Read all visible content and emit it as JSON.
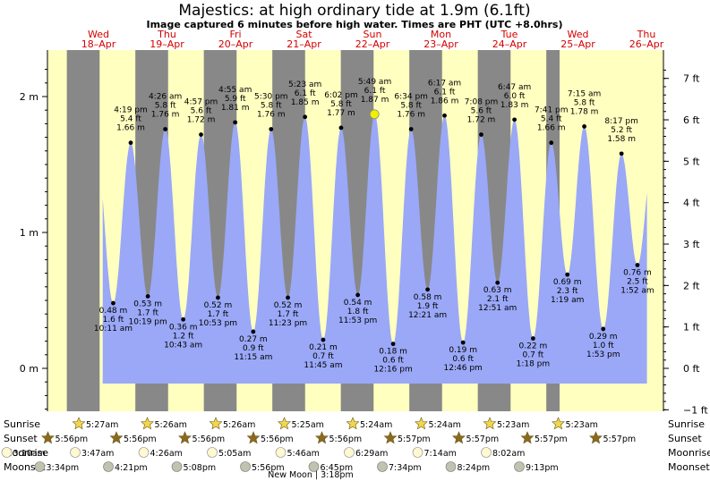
{
  "title": "Majestics: at high  ordinary tide at 1.9m (6.1ft)",
  "subtitle": "Image captured 6 minutes before high water. Times are PHT (UTC +8.0hrs)",
  "chart_data": {
    "type": "area",
    "days": [
      {
        "weekday": "Wed",
        "date": "18–Apr"
      },
      {
        "weekday": "Thu",
        "date": "19–Apr"
      },
      {
        "weekday": "Fri",
        "date": "20–Apr"
      },
      {
        "weekday": "Sat",
        "date": "21–Apr"
      },
      {
        "weekday": "Sun",
        "date": "22–Apr"
      },
      {
        "weekday": "Mon",
        "date": "23–Apr"
      },
      {
        "weekday": "Tue",
        "date": "24–Apr"
      },
      {
        "weekday": "Wed",
        "date": "25–Apr"
      },
      {
        "weekday": "Thu",
        "date": "26–Apr"
      }
    ],
    "y_left": {
      "unit": "m",
      "ticks": [
        {
          "v": 0,
          "label": "0 m"
        },
        {
          "v": 1,
          "label": "1 m"
        },
        {
          "v": 2,
          "label": "2 m"
        }
      ],
      "range": [
        -0.3,
        2.25
      ]
    },
    "y_right": {
      "unit": "ft",
      "ticks": [
        "−1 ft",
        "0 ft",
        "1 ft",
        "2 ft",
        "3 ft",
        "4 ft",
        "5 ft",
        "6 ft",
        "7 ft"
      ]
    },
    "extremes": [
      {
        "time": "2018-04-18T10:11",
        "m": 0.48,
        "lines": [
          "0.48 m",
          "1.6 ft",
          "10:11 am"
        ]
      },
      {
        "time": "2018-04-18T16:19",
        "m": 1.66,
        "lines": [
          "4:19 pm",
          "5.4 ft",
          "1.66 m"
        ]
      },
      {
        "time": "2018-04-18T22:19",
        "m": 0.53,
        "lines": [
          "0.53 m",
          "1.7 ft",
          "10:19 pm"
        ]
      },
      {
        "time": "2018-04-19T04:26",
        "m": 1.76,
        "lines": [
          "4:26 am",
          "5.8 ft",
          "1.76 m"
        ]
      },
      {
        "time": "2018-04-19T10:43",
        "m": 0.36,
        "lines": [
          "0.36 m",
          "1.2 ft",
          "10:43 am"
        ]
      },
      {
        "time": "2018-04-19T16:57",
        "m": 1.72,
        "lines": [
          "4:57 pm",
          "5.6 ft",
          "1.72 m"
        ]
      },
      {
        "time": "2018-04-19T22:53",
        "m": 0.52,
        "lines": [
          "0.52 m",
          "1.7 ft",
          "10:53 pm"
        ]
      },
      {
        "time": "2018-04-20T04:55",
        "m": 1.81,
        "lines": [
          "4:55 am",
          "5.9 ft",
          "1.81 m"
        ]
      },
      {
        "time": "2018-04-20T11:15",
        "m": 0.27,
        "lines": [
          "0.27 m",
          "0.9 ft",
          "11:15 am"
        ]
      },
      {
        "time": "2018-04-20T17:30",
        "m": 1.76,
        "lines": [
          "5:30 pm",
          "5.8 ft",
          "1.76 m"
        ]
      },
      {
        "time": "2018-04-20T23:23",
        "m": 0.52,
        "lines": [
          "0.52 m",
          "1.7 ft",
          "11:23 pm"
        ]
      },
      {
        "time": "2018-04-21T05:23",
        "m": 1.85,
        "lines": [
          "5:23 am",
          "6.1 ft",
          "1.85 m"
        ]
      },
      {
        "time": "2018-04-21T11:45",
        "m": 0.21,
        "lines": [
          "0.21 m",
          "0.7 ft",
          "11:45 am"
        ]
      },
      {
        "time": "2018-04-21T18:02",
        "m": 1.77,
        "lines": [
          "6:02 pm",
          "5.8 ft",
          "1.77 m"
        ]
      },
      {
        "time": "2018-04-21T23:53",
        "m": 0.54,
        "lines": [
          "0.54 m",
          "1.8 ft",
          "11:53 pm"
        ]
      },
      {
        "time": "2018-04-22T05:49",
        "m": 1.87,
        "lines": [
          "5:49 am",
          "6.1 ft",
          "1.87 m"
        ]
      },
      {
        "time": "2018-04-22T12:16",
        "m": 0.18,
        "lines": [
          "0.18 m",
          "0.6 ft",
          "12:16 pm"
        ]
      },
      {
        "time": "2018-04-22T18:34",
        "m": 1.76,
        "lines": [
          "6:34 pm",
          "5.8 ft",
          "1.76 m"
        ]
      },
      {
        "time": "2018-04-23T00:21",
        "m": 0.58,
        "lines": [
          "0.58 m",
          "1.9 ft",
          "12:21 am"
        ]
      },
      {
        "time": "2018-04-23T06:17",
        "m": 1.86,
        "lines": [
          "6:17 am",
          "6.1 ft",
          "1.86 m"
        ]
      },
      {
        "time": "2018-04-23T12:46",
        "m": 0.19,
        "lines": [
          "0.19 m",
          "0.6 ft",
          "12:46 pm"
        ]
      },
      {
        "time": "2018-04-23T19:08",
        "m": 1.72,
        "lines": [
          "7:08 pm",
          "5.6 ft",
          "1.72 m"
        ]
      },
      {
        "time": "2018-04-24T00:51",
        "m": 0.63,
        "lines": [
          "0.63 m",
          "2.1 ft",
          "12:51 am"
        ]
      },
      {
        "time": "2018-04-24T06:47",
        "m": 1.83,
        "lines": [
          "6:47 am",
          "6.0 ft",
          "1.83 m"
        ]
      },
      {
        "time": "2018-04-24T13:18",
        "m": 0.22,
        "lines": [
          "0.22 m",
          "0.7 ft",
          "1:18 pm"
        ]
      },
      {
        "time": "2018-04-24T19:41",
        "m": 1.66,
        "lines": [
          "7:41 pm",
          "5.4 ft",
          "1.66 m"
        ]
      },
      {
        "time": "2018-04-25T01:19",
        "m": 0.69,
        "lines": [
          "0.69 m",
          "2.3 ft",
          "1:19 am"
        ]
      },
      {
        "time": "2018-04-25T07:15",
        "m": 1.78,
        "lines": [
          "7:15 am",
          "5.8 ft",
          "1.78 m"
        ]
      },
      {
        "time": "2018-04-25T13:53",
        "m": 0.29,
        "lines": [
          "0.29 m",
          "1.0 ft",
          "1:53 pm"
        ]
      },
      {
        "time": "2018-04-25T20:17",
        "m": 1.58,
        "lines": [
          "8:17 pm",
          "5.2 ft",
          "1.58 m"
        ]
      },
      {
        "time": "2018-04-26T01:52",
        "m": 0.76,
        "lines": [
          "0.76 m",
          "2.5 ft",
          "1:52 am"
        ]
      }
    ],
    "current_marker": {
      "time": "2018-04-22T05:43",
      "m": 1.87
    },
    "colors": {
      "water": "#9aa8f7",
      "day": "#ffffc0",
      "night": "#888888",
      "label_red": "#d40000",
      "marker": "#f0f000"
    }
  },
  "almanac": {
    "rows": [
      "Sunrise",
      "Sunset",
      "Moonrise",
      "Moonset"
    ],
    "sunrise": [
      {
        "day": 0,
        "time": "5:27am"
      },
      {
        "day": 1,
        "time": "5:26am"
      },
      {
        "day": 2,
        "time": "5:26am"
      },
      {
        "day": 3,
        "time": "5:25am"
      },
      {
        "day": 4,
        "time": "5:24am"
      },
      {
        "day": 5,
        "time": "5:24am"
      },
      {
        "day": 6,
        "time": "5:23am"
      },
      {
        "day": 7,
        "time": "5:23am"
      }
    ],
    "sunset": [
      {
        "day": -1,
        "time": "5:56pm"
      },
      {
        "day": 0,
        "time": "5:56pm"
      },
      {
        "day": 1,
        "time": "5:56pm"
      },
      {
        "day": 2,
        "time": "5:56pm"
      },
      {
        "day": 3,
        "time": "5:56pm"
      },
      {
        "day": 4,
        "time": "5:57pm"
      },
      {
        "day": 5,
        "time": "5:57pm"
      },
      {
        "day": 6,
        "time": "5:57pm"
      },
      {
        "day": 7,
        "time": "5:57pm"
      }
    ],
    "moonrise": [
      {
        "day": -1,
        "time": "3:10am"
      },
      {
        "day": 0,
        "time": "3:47am"
      },
      {
        "day": 1,
        "time": "4:26am"
      },
      {
        "day": 2,
        "time": "5:05am"
      },
      {
        "day": 3,
        "time": "5:46am"
      },
      {
        "day": 4,
        "time": "6:29am"
      },
      {
        "day": 5,
        "time": "7:14am"
      },
      {
        "day": 6,
        "time": "8:02am"
      }
    ],
    "moonset": [
      {
        "day": -1,
        "time": "3:34pm"
      },
      {
        "day": 0,
        "time": "4:21pm"
      },
      {
        "day": 1,
        "time": "5:08pm"
      },
      {
        "day": 2,
        "time": "5:56pm"
      },
      {
        "day": 3,
        "time": "6:45pm"
      },
      {
        "day": 4,
        "time": "7:34pm"
      },
      {
        "day": 5,
        "time": "8:24pm"
      },
      {
        "day": 6,
        "time": "9:13pm"
      }
    ],
    "moon_phase_note": "New Moon | 3:18pm"
  }
}
